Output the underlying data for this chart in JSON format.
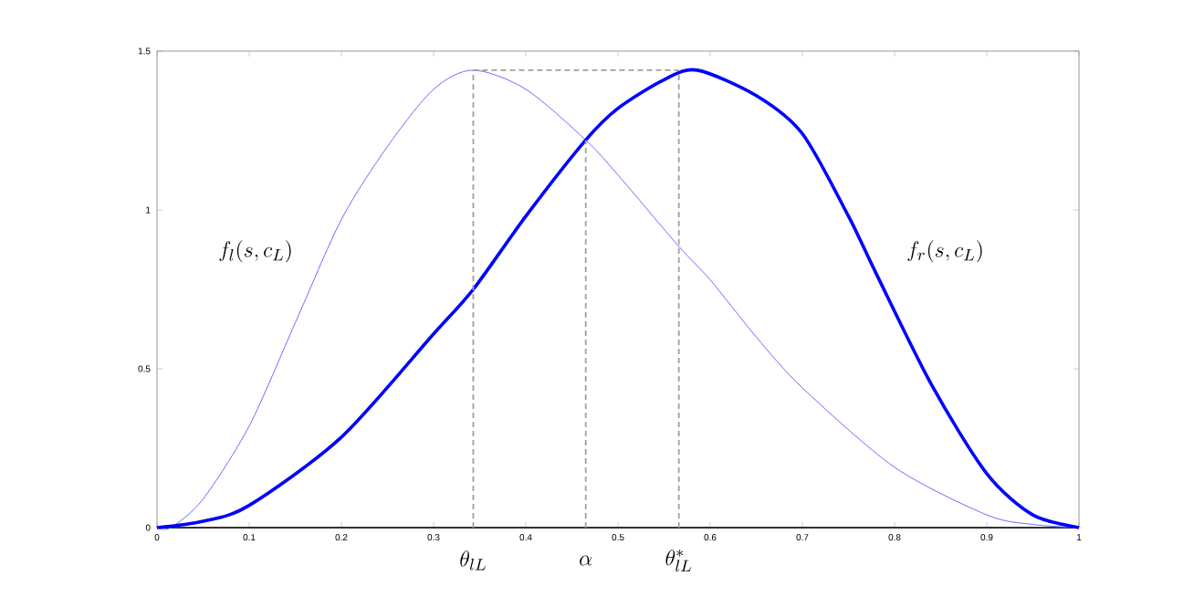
{
  "chart_data": {
    "type": "line",
    "xlim": [
      0,
      1
    ],
    "ylim": [
      0,
      1.5
    ],
    "xticks": [
      0,
      0.1,
      0.2,
      0.3,
      0.4,
      0.5,
      0.6,
      0.7,
      0.8,
      0.9,
      1
    ],
    "yticks": [
      0,
      0.5,
      1,
      1.5
    ],
    "series": [
      {
        "color": "#6b6bff",
        "x": [
          0,
          0.015,
          0.05,
          0.1,
          0.15,
          0.2,
          0.25,
          0.3,
          0.343,
          0.4,
          0.465,
          0.5,
          0.566,
          0.6,
          0.65,
          0.7,
          0.8,
          0.9,
          0.95,
          1
        ],
        "values": [
          0,
          0,
          0.09,
          0.32,
          0.645,
          0.97,
          1.2,
          1.38,
          1.44,
          1.38,
          1.22,
          1.11,
          0.885,
          0.78,
          0.6,
          0.44,
          0.19,
          0.04,
          0.01,
          0
        ]
      },
      {
        "color": "#0000ff",
        "x": [
          0,
          0.05,
          0.1,
          0.2,
          0.3,
          0.343,
          0.4,
          0.465,
          0.5,
          0.55,
          0.586,
          0.65,
          0.7,
          0.75,
          0.78,
          0.84,
          0.9,
          0.95,
          1
        ],
        "values": [
          0,
          0.02,
          0.07,
          0.285,
          0.61,
          0.75,
          0.98,
          1.22,
          1.32,
          1.41,
          1.44,
          1.36,
          1.24,
          0.98,
          0.8,
          0.45,
          0.17,
          0.04,
          0
        ]
      },
      {
        "color": "#a0a0a0",
        "line_style": "dashed",
        "x": [
          0.343,
          0.343
        ],
        "values": [
          0,
          1.44
        ]
      },
      {
        "color": "#a0a0a0",
        "line_style": "dashed",
        "x": [
          0.465,
          0.465
        ],
        "values": [
          0,
          1.22
        ]
      },
      {
        "color": "#a0a0a0",
        "line_style": "dashed",
        "x": [
          0.566,
          0.566
        ],
        "values": [
          0,
          1.44
        ]
      },
      {
        "color": "#a0a0a0",
        "line_style": "dashed",
        "x": [
          0.343,
          0.566
        ],
        "values": [
          1.44,
          1.44
        ]
      }
    ],
    "annotations": [
      "f_l(s,c_L)",
      "f_r(s,c_L)",
      "\\theta_{lL}",
      "\\alpha",
      "\\theta^*_{lL}"
    ]
  }
}
